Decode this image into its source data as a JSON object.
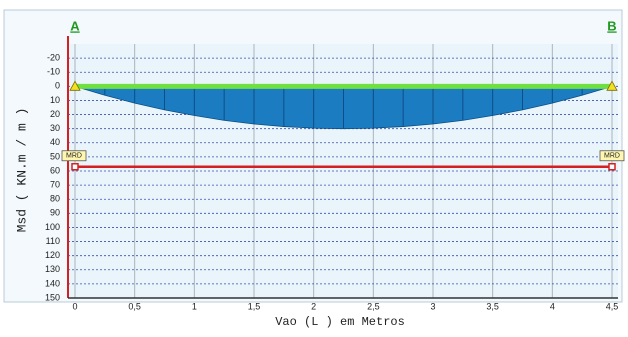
{
  "chart_data": {
    "type": "area",
    "xlabel": "Vao  (L )   em Metros",
    "ylabel": "Msd ( KN.m / m )",
    "x": [
      0,
      0.25,
      0.5,
      0.75,
      1,
      1.25,
      1.5,
      1.75,
      2,
      2.25,
      2.5,
      2.75,
      3,
      3.25,
      3.5,
      3.75,
      4,
      4.25,
      4.5
    ],
    "values": [
      0,
      6.3,
      11.9,
      16.7,
      20.7,
      24.1,
      26.7,
      28.5,
      29.6,
      30,
      29.6,
      28.5,
      26.7,
      24.1,
      20.7,
      16.7,
      11.9,
      6.3,
      0
    ],
    "color": "#1b7cc2",
    "y_inverted": true,
    "xlim": [
      0,
      4.5
    ],
    "ylim": [
      -30,
      150
    ],
    "xticks": [
      0,
      {
        "value": 0.5,
        "label": "0,5"
      },
      1,
      {
        "value": 1.5,
        "label": "1,5"
      },
      2,
      {
        "value": 2.5,
        "label": "2,5"
      },
      3,
      {
        "value": 3.5,
        "label": "3,5"
      },
      4,
      {
        "value": 4.5,
        "label": "4,5"
      }
    ],
    "yticks": [
      -20,
      -10,
      0,
      10,
      20,
      30,
      40,
      50,
      60,
      70,
      80,
      90,
      100,
      110,
      120,
      130,
      140,
      150
    ],
    "grid": true,
    "supports": [
      {
        "label": "A",
        "x": 0
      },
      {
        "label": "B",
        "x": 4.5
      }
    ],
    "limit_line": {
      "label": "MRD",
      "value": 57,
      "color": "#d42020"
    }
  }
}
